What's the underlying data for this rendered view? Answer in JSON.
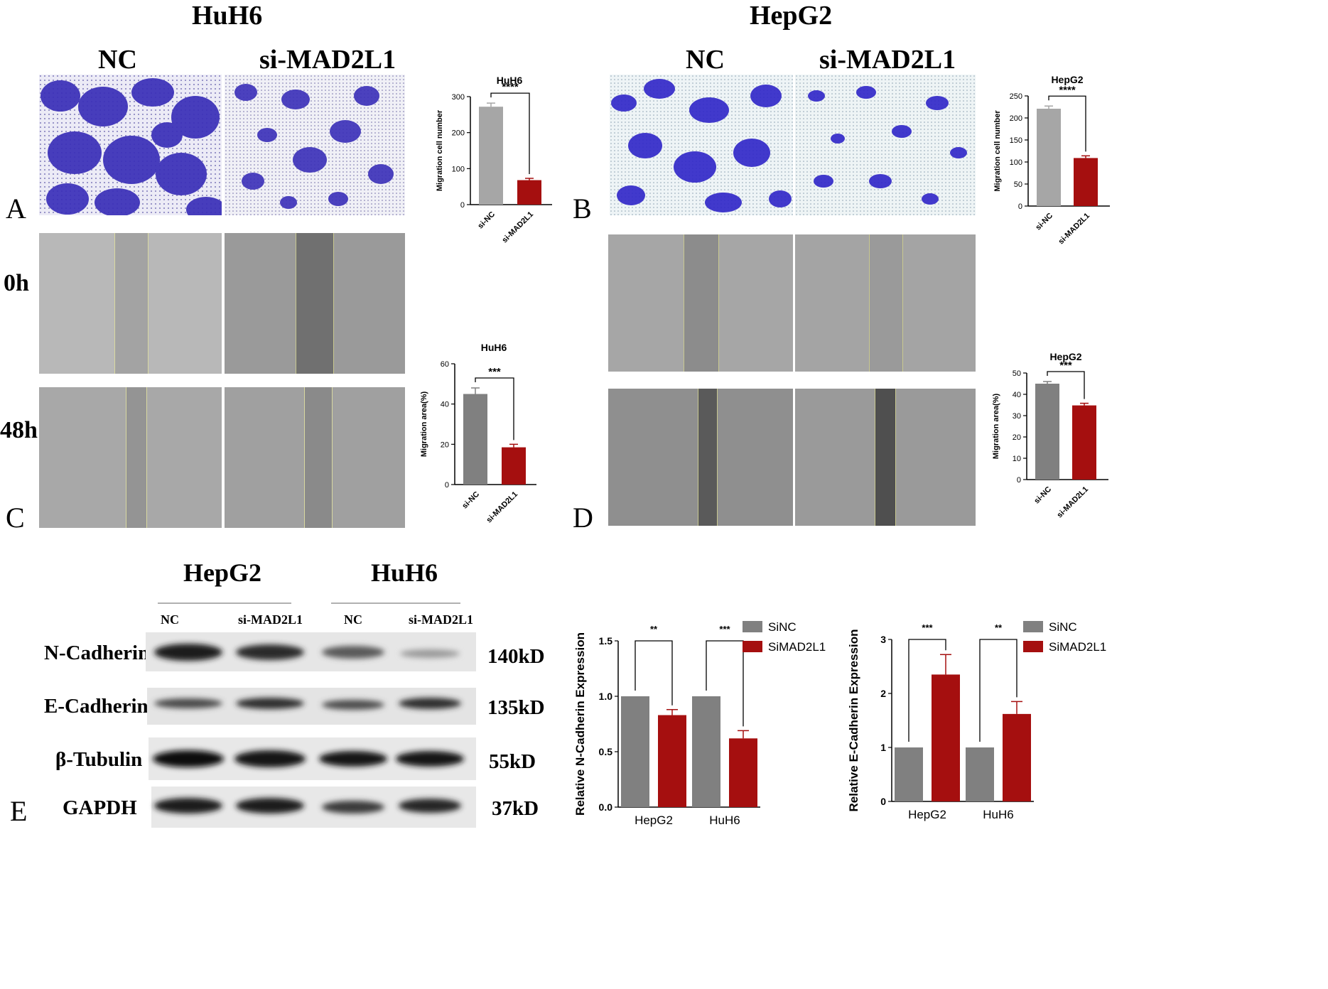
{
  "headers": {
    "huh6_title": "HuH6",
    "hepg2_title": "HepG2",
    "nc": "NC",
    "si": "si-MAD2L1",
    "t0": "0h",
    "t48": "48h"
  },
  "panel_letters": {
    "a": "A",
    "b": "B",
    "c": "C",
    "d": "D",
    "e": "E"
  },
  "blot": {
    "group1": "HepG2",
    "group2": "HuH6",
    "lanes": [
      "NC",
      "si-MAD2L1",
      "NC",
      "si-MAD2L1"
    ],
    "rows": [
      {
        "name": "N-Cadherin",
        "kd": "140kD"
      },
      {
        "name": "E-Cadherin",
        "kd": "135kD"
      },
      {
        "name": "β-Tubulin",
        "kd": "55kD"
      },
      {
        "name": "GAPDH",
        "kd": "37kD"
      }
    ]
  },
  "colors": {
    "grey_bar": "#a6a6a6",
    "dark_grey_bar": "#808080",
    "red_bar": "#a50f0f",
    "stain": "#3a2fb8"
  },
  "chart_data": [
    {
      "id": "A_chart",
      "type": "bar",
      "title": "HuH6",
      "categories": [
        "si-NC",
        "si-MAD2L1"
      ],
      "values": [
        272,
        68
      ],
      "errors": [
        10,
        5
      ],
      "ylabel": "Migration cell number",
      "ylim": [
        0,
        300
      ],
      "yticks": [
        "0",
        "100",
        "200",
        "300"
      ],
      "significance": "****"
    },
    {
      "id": "B_chart",
      "type": "bar",
      "title": "HepG2",
      "categories": [
        "si-NC",
        "si-MAD2L1"
      ],
      "values": [
        221,
        109
      ],
      "errors": [
        6,
        5
      ],
      "ylabel": "Migration cell number",
      "ylim": [
        0,
        250
      ],
      "yticks": [
        "0",
        "50",
        "100",
        "150",
        "200",
        "250"
      ],
      "significance": "****"
    },
    {
      "id": "C_chart",
      "type": "bar",
      "title": "HuH6",
      "categories": [
        "si-NC",
        "si-MAD2L1"
      ],
      "values": [
        45,
        18.5
      ],
      "errors": [
        3,
        1.5
      ],
      "ylabel": "Migration area(%)",
      "ylim": [
        0,
        60
      ],
      "yticks": [
        "0",
        "20",
        "40",
        "60"
      ],
      "significance": "***"
    },
    {
      "id": "D_chart",
      "type": "bar",
      "title": "HepG2",
      "categories": [
        "si-NC",
        "si-MAD2L1"
      ],
      "values": [
        45,
        34.8
      ],
      "errors": [
        1,
        1
      ],
      "ylabel": "Migration area(%)",
      "ylim": [
        0,
        50
      ],
      "yticks": [
        "0",
        "10",
        "20",
        "30",
        "40",
        "50"
      ],
      "significance": "***"
    },
    {
      "id": "E1_chart",
      "type": "bar",
      "categories": [
        "HepG2",
        "HuH6"
      ],
      "series": [
        {
          "name": "SiNC",
          "values": [
            1.0,
            1.0
          ],
          "errors": [
            0,
            0
          ]
        },
        {
          "name": "SiMAD2L1",
          "values": [
            0.83,
            0.62
          ],
          "errors": [
            0.05,
            0.07
          ]
        }
      ],
      "ylabel": "Relative N-Cadherin Expression",
      "ylim": [
        0,
        1.5
      ],
      "yticks": [
        "0.0",
        "0.5",
        "1.0",
        "1.5"
      ],
      "significance": [
        "**",
        "***"
      ]
    },
    {
      "id": "E2_chart",
      "type": "bar",
      "categories": [
        "HepG2",
        "HuH6"
      ],
      "series": [
        {
          "name": "SiNC",
          "values": [
            1.0,
            1.0
          ],
          "errors": [
            0,
            0
          ]
        },
        {
          "name": "SiMAD2L1",
          "values": [
            2.35,
            1.62
          ],
          "errors": [
            0.37,
            0.23
          ]
        }
      ],
      "ylabel": "Relative E-Cadherin Expression",
      "ylim": [
        0,
        3
      ],
      "yticks": [
        "0",
        "1",
        "2",
        "3"
      ],
      "significance": [
        "***",
        "**"
      ]
    }
  ]
}
